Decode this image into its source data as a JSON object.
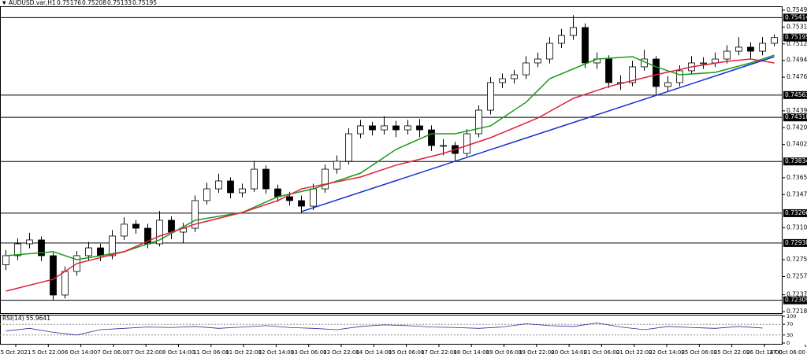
{
  "chart_data": {
    "type": "candlestick",
    "symbol": "AUDUSD.var,H1",
    "ohlc": [
      0.75176,
      0.75208,
      0.75133,
      0.75195
    ],
    "ylim": [
      0.72168,
      0.75538
    ],
    "yticks": [
      0.75495,
      {
        "value": 0.7531,
        "label": "0.75310"
      },
      0.75125,
      0.74945,
      {
        "value": 0.7476,
        "label": "0.74760"
      },
      {
        "value": 0.7439,
        "label": "0.74390"
      },
      0.74205,
      {
        "value": 0.7402,
        "label": "0.74020"
      },
      0.73655,
      {
        "value": 0.7347,
        "label": "0.73470"
      },
      0.73105,
      0.72755,
      {
        "value": 0.7257,
        "label": "0.72570"
      },
      {
        "value": 0.7237,
        "label": "0.72370"
      },
      0.72185
    ],
    "levels": [
      0.75414,
      0.74563,
      0.74318,
      0.73834,
      0.73266,
      0.72938,
      0.72309
    ],
    "current_price": 0.75195,
    "candles": {
      "open": [
        0.727,
        0.72799,
        0.72929,
        0.72972,
        0.72799,
        0.72367,
        0.72626,
        0.72799,
        0.72885,
        0.72799,
        0.73015,
        0.73145,
        0.73101,
        0.72929,
        0.73188,
        0.73058,
        0.73101,
        0.73404,
        0.73533,
        0.7362,
        0.7349,
        0.73533,
        0.73749,
        0.73533,
        0.73447,
        0.73404,
        0.73343,
        0.73533,
        0.73749,
        0.73836,
        0.74138,
        0.74225,
        0.74181,
        0.74225,
        0.74181,
        0.74225,
        0.74181,
        0.74009,
        0.74009,
        0.73922,
        0.74138,
        0.74397,
        0.747,
        0.74743,
        0.74786,
        0.74916,
        0.74959,
        0.75132,
        0.75218,
        0.75305,
        0.74916,
        0.74959,
        0.747,
        0.747,
        0.74873,
        0.74959,
        0.74657,
        0.747,
        0.7483,
        0.74916,
        0.74916,
        0.74959,
        0.75045,
        0.75089,
        0.75045,
        0.75132
      ],
      "high": [
        0.7286,
        0.7299,
        0.7305,
        0.7301,
        0.7283,
        0.7268,
        0.7285,
        0.7295,
        0.7293,
        0.7308,
        0.7322,
        0.7319,
        0.7315,
        0.7329,
        0.7323,
        0.7316,
        0.7346,
        0.736,
        0.737,
        0.7366,
        0.7359,
        0.7384,
        0.7379,
        0.7358,
        0.735,
        0.7346,
        0.7359,
        0.738,
        0.739,
        0.742,
        0.7429,
        0.7427,
        0.7433,
        0.7428,
        0.7429,
        0.743,
        0.7423,
        0.7408,
        0.7405,
        0.7419,
        0.7445,
        0.7476,
        0.748,
        0.7484,
        0.7499,
        0.7503,
        0.752,
        0.7529,
        0.7544,
        0.7535,
        0.7503,
        0.75,
        0.7478,
        0.7494,
        0.7506,
        0.7499,
        0.7477,
        0.7489,
        0.7499,
        0.7498,
        0.7503,
        0.7511,
        0.752,
        0.7514,
        0.752,
        0.7523
      ],
      "low": [
        0.7264,
        0.7275,
        0.7288,
        0.7274,
        0.72309,
        0.7233,
        0.7258,
        0.7275,
        0.7274,
        0.7276,
        0.7297,
        0.7304,
        0.7288,
        0.729,
        0.7298,
        0.72938,
        0.7306,
        0.7336,
        0.7349,
        0.7343,
        0.7344,
        0.735,
        0.7348,
        0.7339,
        0.7335,
        0.73266,
        0.733,
        0.7349,
        0.737,
        0.738,
        0.7409,
        0.7412,
        0.7413,
        0.741,
        0.7413,
        0.741,
        0.7395,
        0.739,
        0.73834,
        0.7389,
        0.741,
        0.7435,
        0.7464,
        0.7469,
        0.7474,
        0.7487,
        0.7491,
        0.7508,
        0.7517,
        0.7486,
        0.7485,
        0.7464,
        0.7462,
        0.7466,
        0.7483,
        0.74563,
        0.746,
        0.7466,
        0.7479,
        0.7485,
        0.7487,
        0.7491,
        0.75,
        0.7496,
        0.75,
        0.751
      ],
      "close": [
        0.72799,
        0.72929,
        0.72972,
        0.72799,
        0.72367,
        0.72626,
        0.72799,
        0.72885,
        0.72799,
        0.73015,
        0.73145,
        0.73101,
        0.72929,
        0.73188,
        0.73058,
        0.73101,
        0.73404,
        0.73533,
        0.7362,
        0.7349,
        0.73533,
        0.73749,
        0.73533,
        0.73447,
        0.73404,
        0.73343,
        0.73533,
        0.73749,
        0.73836,
        0.74138,
        0.74225,
        0.74181,
        0.74225,
        0.74181,
        0.74225,
        0.74181,
        0.74009,
        0.74009,
        0.73922,
        0.74138,
        0.74397,
        0.747,
        0.74743,
        0.74786,
        0.74916,
        0.74959,
        0.75132,
        0.75218,
        0.75305,
        0.74916,
        0.74959,
        0.747,
        0.747,
        0.74873,
        0.74959,
        0.74657,
        0.747,
        0.7483,
        0.74916,
        0.74916,
        0.74959,
        0.75045,
        0.75089,
        0.75045,
        0.75132,
        0.75195
      ]
    },
    "series": [
      {
        "color": "#1a9a1a",
        "x": [
          0,
          4,
          6,
          10,
          13,
          16,
          20,
          23,
          26,
          30,
          33,
          36,
          38,
          41,
          44,
          46,
          50,
          53,
          55,
          57,
          60,
          63,
          65
        ],
        "values": [
          0.72799,
          0.72843,
          0.72756,
          0.72843,
          0.72972,
          0.73188,
          0.73274,
          0.73447,
          0.73533,
          0.73706,
          0.73966,
          0.74138,
          0.74138,
          0.74225,
          0.74484,
          0.74743,
          0.74959,
          0.74985,
          0.74873,
          0.74786,
          0.74812,
          0.74916,
          0.75002
        ]
      },
      {
        "color": "#e0203a",
        "x": [
          0,
          4,
          6,
          10,
          13,
          16,
          20,
          23,
          25,
          30,
          33,
          37,
          41,
          45,
          48,
          51,
          55,
          58,
          61,
          63,
          65
        ],
        "values": [
          0.7241,
          0.7254,
          0.72713,
          0.72843,
          0.73015,
          0.73145,
          0.73274,
          0.73404,
          0.73533,
          0.73663,
          0.73793,
          0.73922,
          0.74095,
          0.74311,
          0.74527,
          0.74657,
          0.74786,
          0.74873,
          0.74933,
          0.74959,
          0.74916
        ]
      },
      {
        "color": "#1030d0",
        "x": [
          25,
          65
        ],
        "values": [
          0.73283,
          0.74985
        ]
      }
    ],
    "x_labels": [
      "5 Oct 2021",
      "5 Oct 22:00",
      "6 Oct 14:00",
      "7 Oct 06:00",
      "7 Oct 22:00",
      "8 Oct 14:00",
      "11 Oct 06:00",
      "11 Oct 22:00",
      "12 Oct 14:00",
      "13 Oct 06:00",
      "13 Oct 22:00",
      "14 Oct 14:00",
      "15 Oct 06:00",
      "17 Oct 22:00",
      "18 Oct 14:00",
      "19 Oct 06:00",
      "19 Oct 22:00",
      "20 Oct 14:00",
      "21 Oct 06:00",
      "21 Oct 22:00",
      "22 Oct 14:00",
      "25 Oct 06:00",
      "25 Oct 22:00",
      "26 Oct 14:00",
      "27 Oct 06:00"
    ],
    "rsi": {
      "title": "RSI(14) 55.9641",
      "color": "#2a2aa0",
      "ylim": [
        0,
        100
      ],
      "yticks": [
        100,
        70,
        30,
        0
      ],
      "levels": [
        70,
        30
      ],
      "x": [
        0,
        2,
        4,
        6,
        8,
        10,
        12,
        14,
        16,
        18,
        20,
        22,
        24,
        26,
        28,
        30,
        32,
        34,
        36,
        38,
        40,
        42,
        44,
        46,
        48,
        50,
        52,
        54,
        56,
        58,
        60,
        62,
        64
      ],
      "values": [
        45,
        55,
        40,
        30,
        50,
        55,
        60,
        58,
        62,
        55,
        60,
        65,
        58,
        55,
        50,
        62,
        68,
        65,
        60,
        58,
        55,
        60,
        72,
        65,
        62,
        75,
        60,
        50,
        62,
        58,
        55,
        62,
        56
      ]
    }
  }
}
